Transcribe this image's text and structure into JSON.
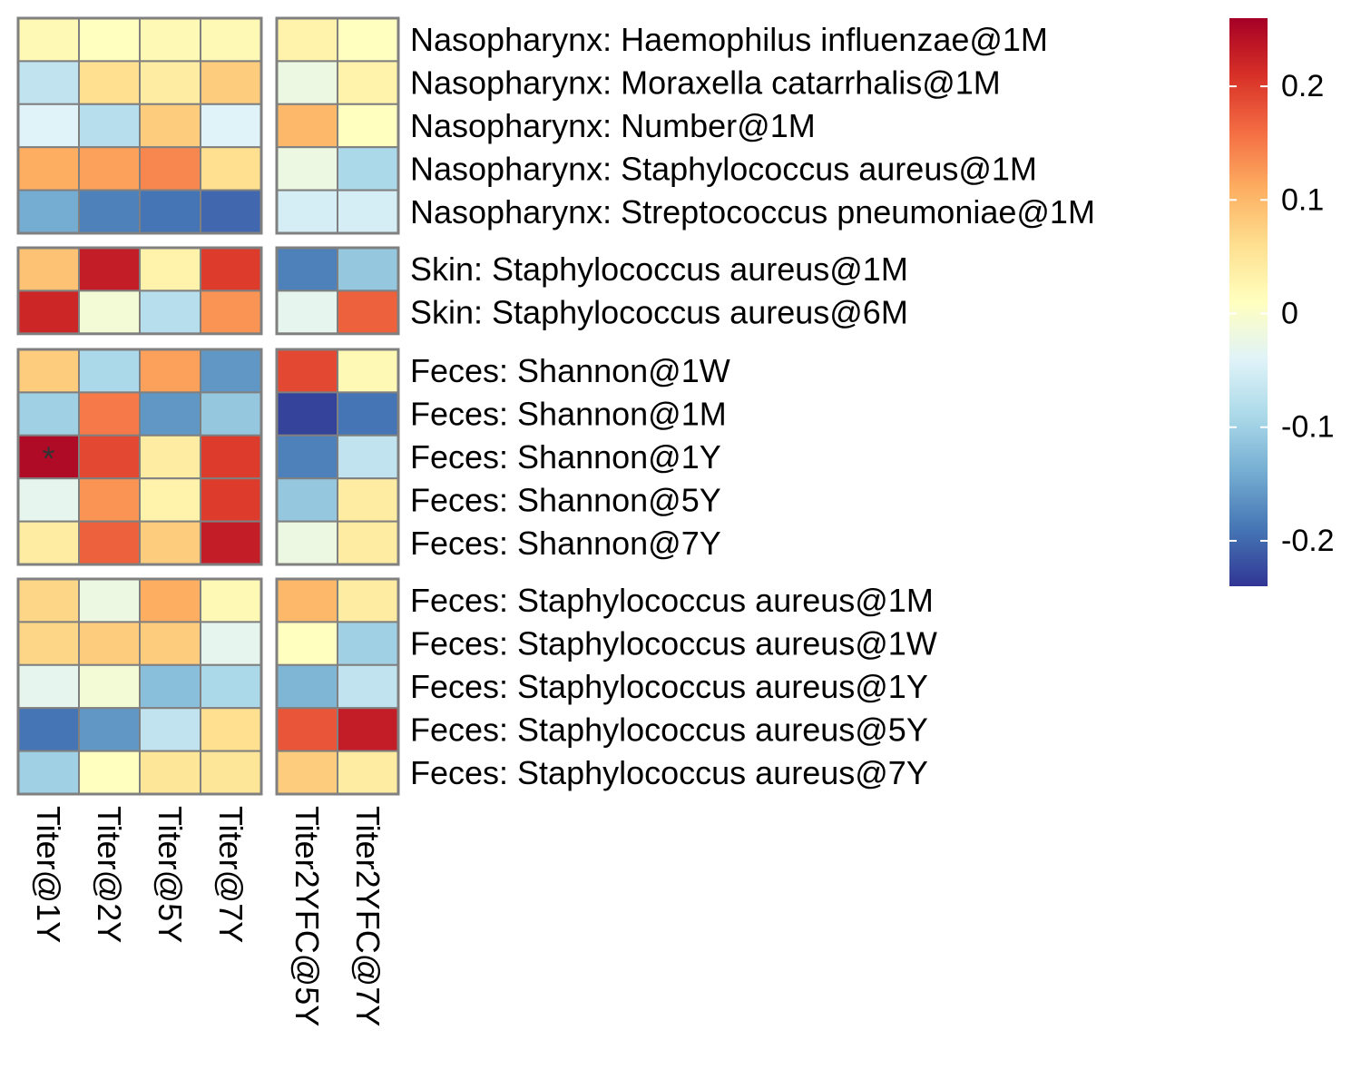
{
  "chart_data": {
    "type": "heatmap",
    "title": "",
    "columns": [
      {
        "label": "Titer@1Y",
        "group": 0
      },
      {
        "label": "Titer@2Y",
        "group": 0
      },
      {
        "label": "Titer@5Y",
        "group": 0
      },
      {
        "label": "Titer@7Y",
        "group": 0
      },
      {
        "label": "Titer2YFC@5Y",
        "group": 1
      },
      {
        "label": "Titer2YFC@7Y",
        "group": 1
      }
    ],
    "row_groups": [
      {
        "rows": [
          {
            "label": "Nasopharynx: Haemophilus influenzae@1M",
            "values": [
              0.02,
              0.01,
              0.02,
              0.02,
              0.03,
              0.01
            ]
          },
          {
            "label": "Nasopharynx: Moraxella catarrhalis@1M",
            "values": [
              -0.07,
              0.06,
              0.04,
              0.08,
              -0.02,
              0.03
            ]
          },
          {
            "label": "Nasopharynx: Number@1M",
            "values": [
              -0.04,
              -0.08,
              0.08,
              -0.04,
              0.1,
              0.01
            ]
          },
          {
            "label": "Nasopharynx: Staphylococcus aureus@1M",
            "values": [
              0.11,
              0.12,
              0.14,
              0.06,
              -0.02,
              -0.09
            ]
          },
          {
            "label": "Nasopharynx: Streptococcus pneumoniae@1M",
            "values": [
              -0.14,
              -0.18,
              -0.19,
              -0.2,
              -0.05,
              -0.05
            ]
          }
        ]
      },
      {
        "rows": [
          {
            "label": "Skin: Staphylococcus aureus@1M",
            "values": [
              0.09,
              0.23,
              0.03,
              0.2,
              -0.18,
              -0.11
            ]
          },
          {
            "label": "Skin: Staphylococcus aureus@6M",
            "values": [
              0.22,
              -0.01,
              -0.08,
              0.13,
              -0.03,
              0.17
            ]
          }
        ]
      },
      {
        "rows": [
          {
            "label": "Feces: Shannon@1W",
            "values": [
              0.08,
              -0.09,
              0.12,
              -0.16,
              0.19,
              0.02
            ]
          },
          {
            "label": "Feces: Shannon@1M",
            "values": [
              -0.1,
              0.15,
              -0.16,
              -0.11,
              -0.23,
              -0.19
            ]
          },
          {
            "label": "Feces: Shannon@1Y",
            "values": [
              0.25,
              0.19,
              0.04,
              0.2,
              -0.18,
              -0.07
            ]
          },
          {
            "label": "Feces: Shannon@5Y",
            "values": [
              -0.03,
              0.13,
              0.03,
              0.2,
              -0.11,
              0.04
            ]
          },
          {
            "label": "Feces: Shannon@7Y",
            "values": [
              0.04,
              0.17,
              0.08,
              0.23,
              -0.02,
              0.04
            ]
          }
        ]
      },
      {
        "rows": [
          {
            "label": "Feces: Staphylococcus aureus@1M",
            "values": [
              0.07,
              -0.02,
              0.11,
              0.02,
              0.1,
              0.04
            ]
          },
          {
            "label": "Feces: Staphylococcus aureus@1W",
            "values": [
              0.07,
              0.08,
              0.08,
              -0.03,
              0.01,
              -0.1
            ]
          },
          {
            "label": "Feces: Staphylococcus aureus@1Y",
            "values": [
              -0.03,
              -0.01,
              -0.12,
              -0.09,
              -0.13,
              -0.07
            ]
          },
          {
            "label": "Feces: Staphylococcus aureus@5Y",
            "values": [
              -0.19,
              -0.16,
              -0.07,
              0.06,
              0.18,
              0.23
            ]
          },
          {
            "label": "Feces: Staphylococcus aureus@7Y",
            "values": [
              -0.1,
              0.01,
              0.05,
              0.05,
              0.08,
              0.04
            ]
          }
        ]
      }
    ],
    "annotations": [
      {
        "text": "*",
        "row_label": "Feces: Shannon@1Y",
        "column_label": "Titer@1Y"
      }
    ],
    "colorbar": {
      "min": -0.24,
      "max": 0.26,
      "ticks": [
        0.2,
        0.1,
        0,
        -0.1,
        -0.2
      ],
      "tick_labels": [
        "0.2",
        "0.1",
        "0",
        "-0.1",
        "-0.2"
      ],
      "placement": "right"
    },
    "colors": {
      "palette": [
        "#313695",
        "#4575b4",
        "#74add1",
        "#abd9e9",
        "#e0f3f8",
        "#ffffbf",
        "#fee090",
        "#fdae61",
        "#f46d43",
        "#d73027",
        "#a50026"
      ],
      "cell_border": "#808080"
    }
  }
}
